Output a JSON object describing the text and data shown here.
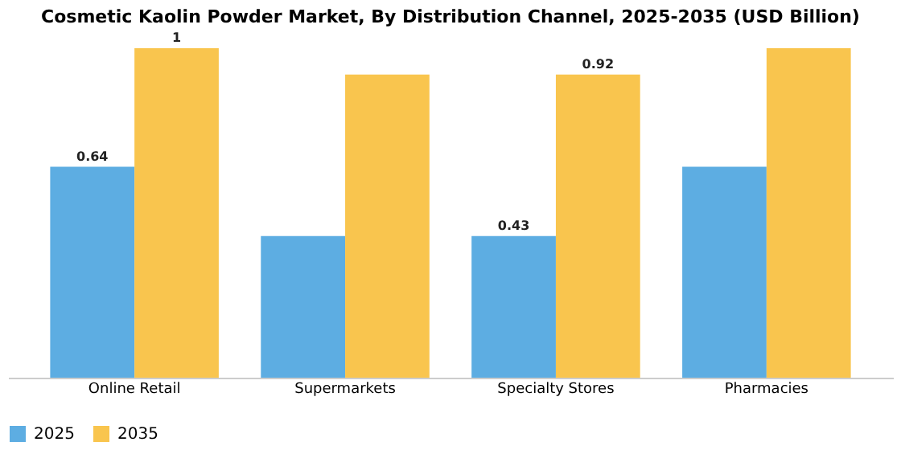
{
  "chart_data": {
    "type": "bar",
    "title": "Cosmetic Kaolin Powder Market, By Distribution Channel, 2025-2035 (USD Billion)",
    "categories": [
      "Online Retail",
      "Supermarkets",
      "Specialty Stores",
      "Pharmacies"
    ],
    "series": [
      {
        "name": "2025",
        "color": "#5dade2",
        "values": [
          0.64,
          0.43,
          0.43,
          0.64
        ],
        "value_labels": [
          "0.64",
          null,
          "0.43",
          null
        ]
      },
      {
        "name": "2035",
        "color": "#f9c54e",
        "values": [
          1,
          0.92,
          0.92,
          1
        ],
        "value_labels": [
          "1",
          null,
          "0.92",
          null
        ]
      }
    ],
    "legend": "bottom"
  }
}
